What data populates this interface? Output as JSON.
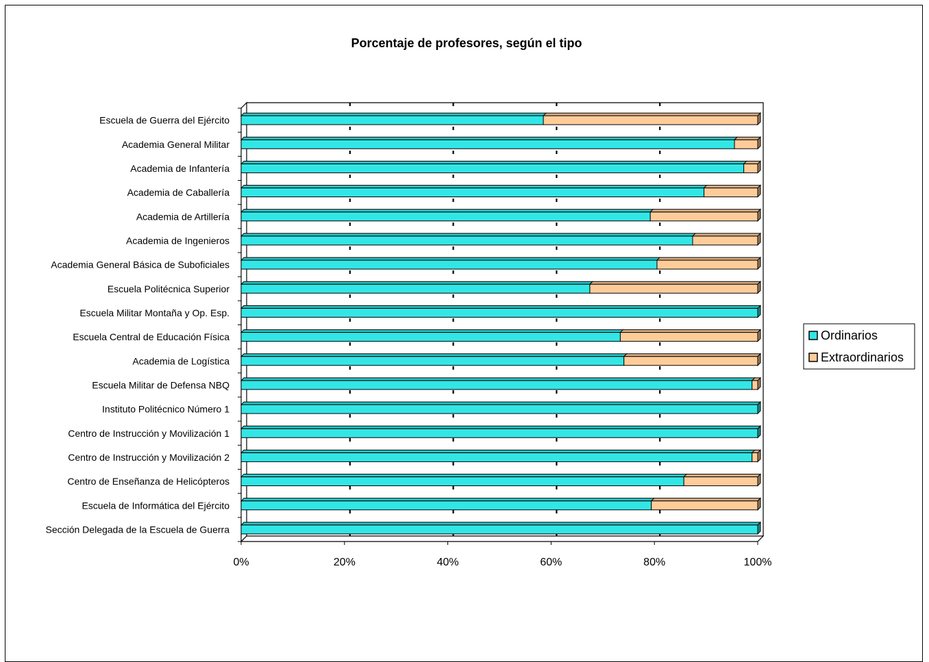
{
  "chart_data": {
    "type": "bar",
    "orientation": "horizontal",
    "stacked": "percent",
    "three_d": true,
    "title": "Porcentaje de profesores, según el tipo",
    "xlabel": "",
    "ylabel": "",
    "xlim": [
      0,
      100
    ],
    "x_ticks": [
      "0%",
      "20%",
      "40%",
      "60%",
      "80%",
      "100%"
    ],
    "grid": true,
    "legend_position": "right",
    "categories": [
      "Escuela de Guerra del Ejército",
      "Academia General Militar",
      "Academia de Infantería",
      "Academia de Caballería",
      "Academia de Artillería",
      "Academia de Ingenieros",
      "Academia General Básica de Suboficiales",
      "Escuela Politécnica Superior",
      "Escuela Militar Montaña y Op. Esp.",
      "Escuela Central de Educación Física",
      "Academia de Logística",
      "Escuela Militar de Defensa NBQ",
      "Instituto Politécnico Número 1",
      "Centro de Instrucción y Movilización 1",
      "Centro de Instrucción y Movilización 2",
      "Centro de Enseñanza de Helicópteros",
      "Escuela de Informática del Ejército",
      "Sección Delegada de la Escuela de Guerra"
    ],
    "series": [
      {
        "name": "Ordinarios",
        "color": "#33e6e6",
        "values": [
          58.5,
          95.5,
          97.3,
          89.6,
          79.2,
          87.4,
          80.5,
          67.5,
          100,
          73.4,
          74.1,
          98.9,
          100,
          100,
          98.9,
          85.7,
          79.4,
          100
        ]
      },
      {
        "name": "Extraordinarios",
        "color": "#ffcc99",
        "values": [
          41.5,
          4.5,
          2.7,
          10.4,
          20.8,
          12.6,
          19.5,
          32.5,
          0,
          26.6,
          25.9,
          1.1,
          0,
          0,
          1.1,
          14.3,
          20.6,
          0
        ]
      }
    ]
  }
}
